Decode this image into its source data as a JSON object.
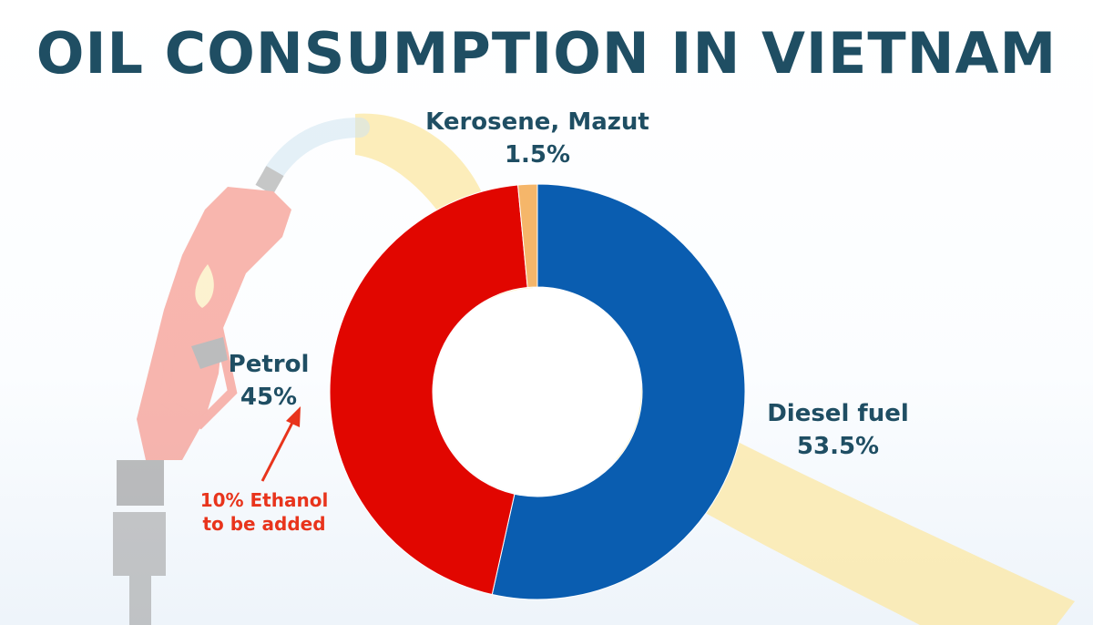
{
  "chart_data": {
    "type": "pie",
    "title": "OIL CONSUMPTION IN VIETNAM",
    "slices": [
      {
        "label": "Diesel fuel",
        "value": 53.5,
        "value_label": "53.5%",
        "color": "#0a5db0"
      },
      {
        "label": "Petrol",
        "value": 45,
        "value_label": "45%",
        "color": "#e10600"
      },
      {
        "label": "Kerosene, Mazut",
        "value": 1.5,
        "value_label": "1.5%",
        "color": "#f5b66a"
      }
    ],
    "style": "donut",
    "annotation": {
      "line1": "10% Ethanol",
      "line2": "to be added",
      "color": "#e8341c"
    }
  },
  "decoration": {
    "fuel_nozzle_icon": "fuel-pump-nozzle",
    "ribbon_color": "#fbe8a9"
  }
}
